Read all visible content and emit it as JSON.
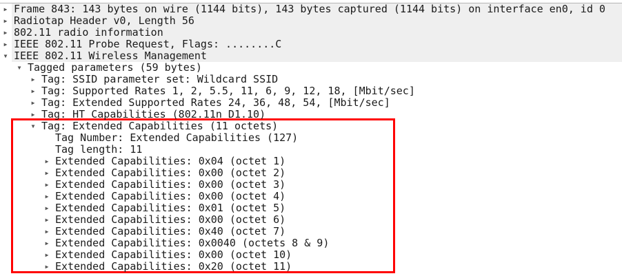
{
  "tree": [
    {
      "level": 0,
      "expanded": false,
      "has_children": true,
      "shaded": true,
      "text": "Frame 843: 143 bytes on wire (1144 bits), 143 bytes captured (1144 bits) on interface en0, id 0"
    },
    {
      "level": 0,
      "expanded": false,
      "has_children": true,
      "shaded": true,
      "text": "Radiotap Header v0, Length 56"
    },
    {
      "level": 0,
      "expanded": false,
      "has_children": true,
      "shaded": true,
      "text": "802.11 radio information"
    },
    {
      "level": 0,
      "expanded": false,
      "has_children": true,
      "shaded": true,
      "text": "IEEE 802.11 Probe Request, Flags: ........C"
    },
    {
      "level": 0,
      "expanded": true,
      "has_children": true,
      "shaded": true,
      "text": "IEEE 802.11 Wireless Management"
    },
    {
      "level": 1,
      "expanded": true,
      "has_children": true,
      "text": "Tagged parameters (59 bytes)"
    },
    {
      "level": 2,
      "expanded": false,
      "has_children": true,
      "text": "Tag: SSID parameter set: Wildcard SSID"
    },
    {
      "level": 2,
      "expanded": false,
      "has_children": true,
      "text": "Tag: Supported Rates 1, 2, 5.5, 11, 6, 9, 12, 18, [Mbit/sec]"
    },
    {
      "level": 2,
      "expanded": false,
      "has_children": true,
      "text": "Tag: Extended Supported Rates 24, 36, 48, 54, [Mbit/sec]"
    },
    {
      "level": 2,
      "expanded": false,
      "has_children": true,
      "text": "Tag: HT Capabilities (802.11n D1.10)"
    },
    {
      "level": 2,
      "expanded": true,
      "has_children": true,
      "text": "Tag: Extended Capabilities (11 octets)"
    },
    {
      "level": 3,
      "has_children": false,
      "text": "Tag Number: Extended Capabilities (127)"
    },
    {
      "level": 3,
      "has_children": false,
      "text": "Tag length: 11"
    },
    {
      "level": 3,
      "expanded": false,
      "has_children": true,
      "text": "Extended Capabilities: 0x04 (octet 1)"
    },
    {
      "level": 3,
      "expanded": false,
      "has_children": true,
      "text": "Extended Capabilities: 0x00 (octet 2)"
    },
    {
      "level": 3,
      "expanded": false,
      "has_children": true,
      "text": "Extended Capabilities: 0x00 (octet 3)"
    },
    {
      "level": 3,
      "expanded": false,
      "has_children": true,
      "text": "Extended Capabilities: 0x00 (octet 4)"
    },
    {
      "level": 3,
      "expanded": false,
      "has_children": true,
      "text": "Extended Capabilities: 0x01 (octet 5)"
    },
    {
      "level": 3,
      "expanded": false,
      "has_children": true,
      "text": "Extended Capabilities: 0x00 (octet 6)"
    },
    {
      "level": 3,
      "expanded": false,
      "has_children": true,
      "text": "Extended Capabilities: 0x40 (octet 7)"
    },
    {
      "level": 3,
      "expanded": false,
      "has_children": true,
      "text": "Extended Capabilities: 0x0040 (octets 8 & 9)"
    },
    {
      "level": 3,
      "expanded": false,
      "has_children": true,
      "text": "Extended Capabilities: 0x00 (octet 10)"
    },
    {
      "level": 3,
      "expanded": false,
      "has_children": true,
      "text": "Extended Capabilities: 0x20 (octet 11)"
    }
  ],
  "colors": {
    "highlight_border": "#ff0000",
    "shaded_row": "#efefef"
  }
}
